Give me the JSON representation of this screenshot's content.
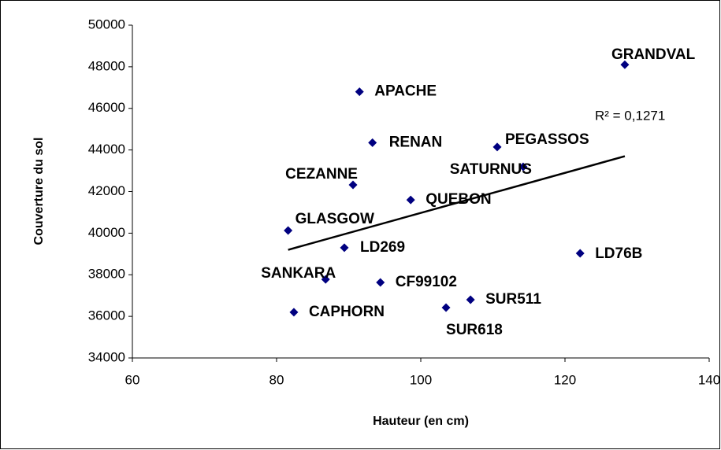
{
  "chart_data": {
    "type": "scatter",
    "x_label": "Hauteur (en cm)",
    "y_label": "Couverture du sol",
    "xlim": [
      60,
      140
    ],
    "xticks": [
      60,
      80,
      100,
      120,
      140
    ],
    "ylim": [
      34000,
      50000
    ],
    "yticks": [
      34000,
      36000,
      38000,
      40000,
      42000,
      44000,
      46000,
      48000,
      50000
    ],
    "color": "#000080",
    "point_labels": [
      "GRANDVAL",
      "APACHE",
      "RENAN",
      "PEGASSOS",
      "SATURNUS",
      "CEZANNE",
      "QUEBON",
      "GLASGOW",
      "LD269",
      "LD76B",
      "SANKARA",
      "CF99102",
      "CAPHORN",
      "SUR618",
      "SUR511"
    ],
    "x": [
      128.3,
      91.5,
      93.3,
      110.6,
      114.2,
      90.6,
      98.6,
      81.6,
      89.4,
      122.1,
      86.8,
      94.4,
      82.4,
      103.5,
      106.9
    ],
    "values": [
      48100,
      46800,
      44350,
      44140,
      43190,
      42320,
      41600,
      40130,
      39300,
      39030,
      37780,
      37630,
      36200,
      36420,
      36800
    ],
    "trendline": {
      "x": [
        81.6,
        128.3
      ],
      "values": [
        39200,
        43700
      ],
      "color": "#000000"
    },
    "annotation": "R² = 0,1271"
  }
}
